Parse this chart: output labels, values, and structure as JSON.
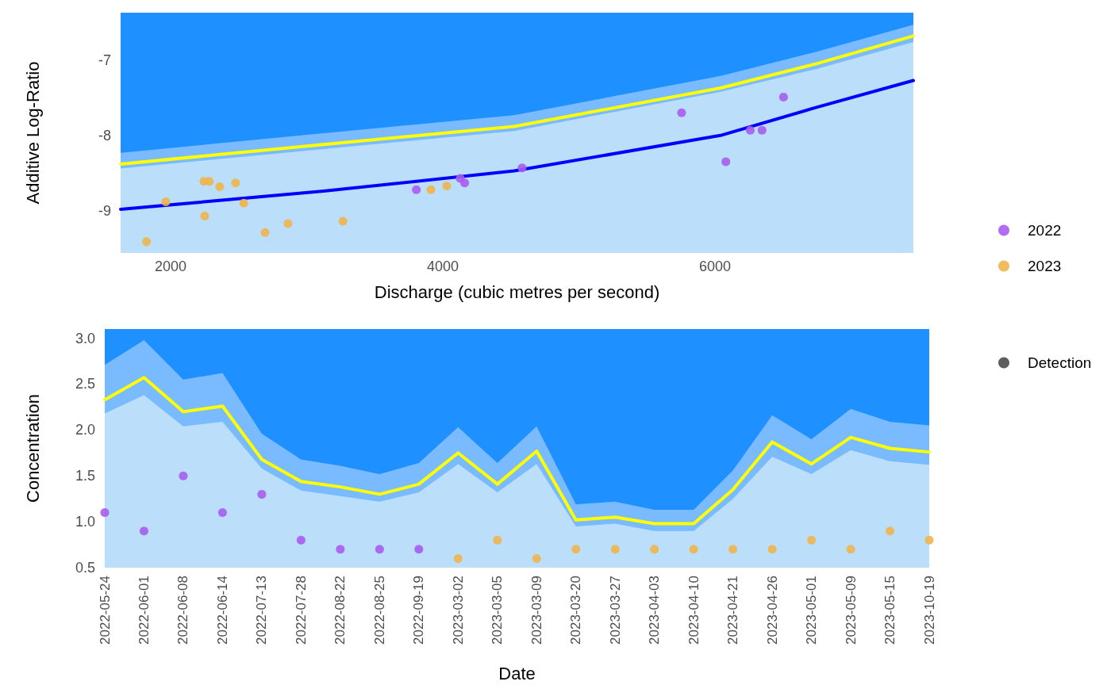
{
  "chart_data": [
    {
      "type": "line",
      "xlabel": "Discharge (cubic metres per second)",
      "ylabel": "Additive Log-Ratio",
      "xlim": [
        1633,
        7458
      ],
      "xticks": [
        2000,
        4000,
        6000
      ],
      "ylim": [
        -9.56,
        -6.37
      ],
      "yticks": [
        -9,
        -8,
        -7
      ],
      "grid": false,
      "legend": "right",
      "marker": "circle",
      "bands": [
        {
          "axis": "y",
          "from": -9.56,
          "to": -6.37,
          "color": "#bbdefb"
        }
      ],
      "series": [
        {
          "type": "area",
          "marker": "none",
          "color": "#7abaff",
          "x": [
            1633,
            3125,
            4525,
            6041,
            6741,
            7458
          ],
          "values": [
            -8.44,
            -8.18,
            -7.94,
            -7.42,
            -7.12,
            -6.76
          ]
        },
        {
          "type": "area",
          "marker": "none",
          "color": "#1e90ff",
          "x": [
            1633,
            3125,
            4525,
            6041,
            6741,
            7458
          ],
          "values": [
            -8.23,
            -7.97,
            -7.73,
            -7.21,
            -6.89,
            -6.53
          ]
        },
        {
          "type": "line",
          "marker": "none",
          "color": "#ffff00",
          "x": [
            1633,
            3125,
            4525,
            6041,
            6741,
            7458
          ],
          "values": [
            -8.38,
            -8.12,
            -7.88,
            -7.37,
            -7.05,
            -6.68
          ]
        },
        {
          "type": "line",
          "marker": "none",
          "color": "#0000ff",
          "x": [
            1633,
            3125,
            4525,
            6041,
            6741,
            7458
          ],
          "values": [
            -8.98,
            -8.74,
            -8.47,
            -8.0,
            -7.63,
            -7.27
          ]
        },
        {
          "type": "scatter",
          "name": "2022",
          "color": "#a95cf0",
          "x": [
            3806,
            4128,
            4161,
            4583,
            5755,
            6080,
            6259,
            6346,
            6504
          ],
          "values": [
            -8.72,
            -8.57,
            -8.63,
            -8.43,
            -7.7,
            -8.35,
            -7.93,
            -7.93,
            -7.49
          ]
        },
        {
          "type": "scatter",
          "name": "2023",
          "color": "#f0b44c",
          "x": [
            1823,
            1965,
            2245,
            2285,
            2251,
            2361,
            2478,
            2538,
            2694,
            2863,
            3267,
            3913,
            4029
          ],
          "values": [
            -9.41,
            -8.88,
            -8.61,
            -8.61,
            -9.07,
            -8.68,
            -8.63,
            -8.9,
            -9.29,
            -9.17,
            -9.14,
            -8.72,
            -8.67
          ]
        }
      ]
    },
    {
      "type": "line",
      "xlabel": "Date",
      "ylabel": "Concentration",
      "categories": [
        "2022-05-24",
        "2022-06-01",
        "2022-06-08",
        "2022-06-14",
        "2022-07-13",
        "2022-07-28",
        "2022-08-22",
        "2022-08-25",
        "2022-09-19",
        "2023-03-02",
        "2023-03-05",
        "2023-03-09",
        "2023-03-20",
        "2023-03-27",
        "2023-04-03",
        "2023-04-10",
        "2023-04-21",
        "2023-04-26",
        "2023-05-01",
        "2023-05-09",
        "2023-05-15",
        "2023-10-19"
      ],
      "ylim": [
        0.5,
        3.1
      ],
      "yticks": [
        0.5,
        {
          "value": 1,
          "label": "1.0"
        },
        1.5,
        {
          "value": 2,
          "label": "2.0"
        },
        2.5,
        {
          "value": 3,
          "label": "3.0"
        }
      ],
      "grid": false,
      "legend": "right",
      "marker": "circle",
      "bands": [
        {
          "axis": "y",
          "from": 0.5,
          "to": 3.1,
          "color": "#1e90ff"
        }
      ],
      "series": [
        {
          "type": "area",
          "marker": "none",
          "color": "#7abaff",
          "values": [
            2.71,
            2.98,
            2.55,
            2.62,
            1.96,
            1.68,
            1.61,
            1.52,
            1.64,
            2.03,
            1.64,
            2.04,
            1.19,
            1.22,
            1.13,
            1.13,
            1.56,
            2.16,
            1.9,
            2.23,
            2.09,
            2.05
          ]
        },
        {
          "type": "area",
          "marker": "none",
          "color": "#bbdefb",
          "values": [
            2.18,
            2.38,
            2.04,
            2.09,
            1.58,
            1.34,
            1.28,
            1.22,
            1.32,
            1.63,
            1.32,
            1.63,
            0.95,
            0.98,
            0.9,
            0.9,
            1.25,
            1.71,
            1.52,
            1.78,
            1.66,
            1.62
          ]
        },
        {
          "type": "line",
          "marker": "none",
          "color": "#ffff00",
          "values": [
            2.33,
            2.57,
            2.2,
            2.26,
            1.68,
            1.44,
            1.38,
            1.3,
            1.41,
            1.75,
            1.41,
            1.77,
            1.02,
            1.05,
            0.98,
            0.98,
            1.35,
            1.87,
            1.63,
            1.92,
            1.8,
            1.76
          ]
        },
        {
          "type": "scatter",
          "color": "#a95cf0",
          "values": [
            1.1,
            0.9,
            1.5,
            1.1,
            1.3,
            0.8,
            0.7,
            0.7,
            0.7,
            null,
            null,
            null,
            null,
            null,
            null,
            null,
            null,
            null,
            null,
            null,
            null,
            null
          ]
        },
        {
          "type": "scatter",
          "color": "#f0b44c",
          "values": [
            null,
            null,
            null,
            null,
            null,
            null,
            null,
            null,
            null,
            0.6,
            0.8,
            0.6,
            0.7,
            0.7,
            0.7,
            0.7,
            0.7,
            0.7,
            0.8,
            0.7,
            0.9,
            0.8
          ]
        },
        {
          "type": "scatter",
          "name": "Detection",
          "color": "#4d4d4d",
          "values": [
            null,
            null,
            null,
            null,
            null,
            null,
            null,
            null,
            null,
            null,
            null,
            null,
            null,
            null,
            null,
            null,
            null,
            null,
            null,
            null,
            null,
            null
          ]
        }
      ]
    }
  ]
}
